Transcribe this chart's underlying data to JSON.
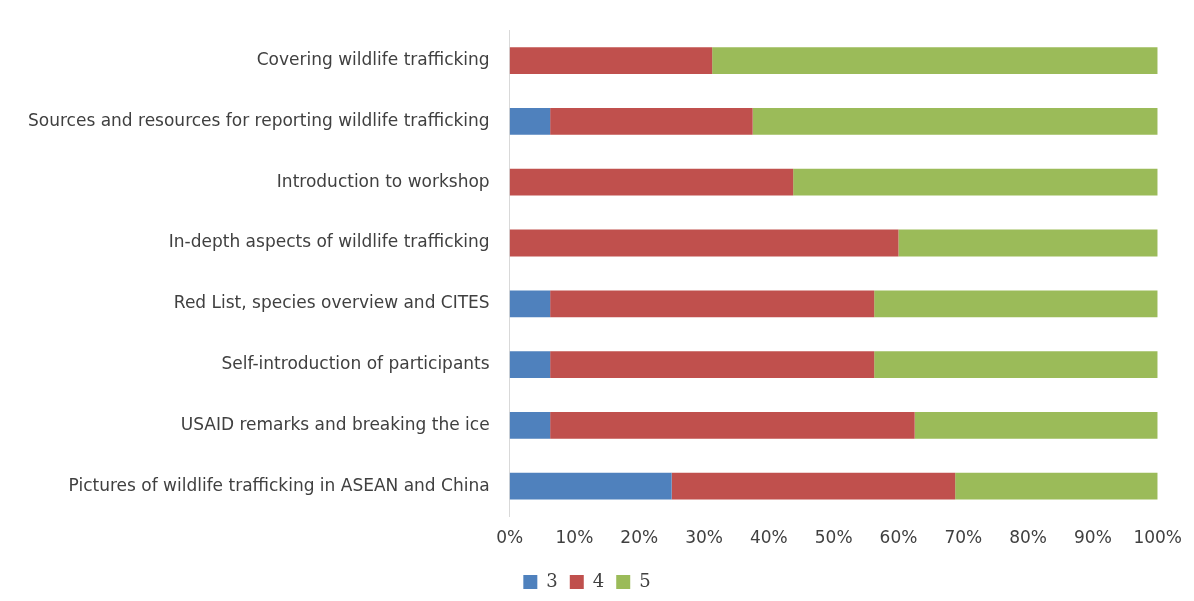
{
  "chart_data": {
    "type": "bar",
    "orientation": "horizontal",
    "stacked": true,
    "categories": [
      "Covering wildlife trafficking",
      "Sources and resources for reporting wildlife trafficking",
      "Introduction to workshop",
      "In-depth aspects of wildlife trafficking",
      "Red List, species overview and CITES",
      "Self-introduction of participants",
      "USAID remarks and breaking the ice",
      "Pictures of wildlife trafficking in ASEAN and China"
    ],
    "series": [
      {
        "name": "3",
        "color": "#4f81bd",
        "values": [
          0,
          6.25,
          0,
          0,
          6.25,
          6.25,
          6.25,
          25
        ]
      },
      {
        "name": "4",
        "color": "#c0504d",
        "values": [
          31.25,
          31.25,
          43.75,
          60,
          50,
          50,
          56.25,
          43.75
        ]
      },
      {
        "name": "5",
        "color": "#9bbb59",
        "values": [
          68.75,
          62.5,
          56.25,
          40,
          43.75,
          43.75,
          37.5,
          31.25
        ]
      }
    ],
    "xlim": [
      0,
      100
    ],
    "xticks": [
      {
        "value": 0,
        "label": "0%"
      },
      {
        "value": 10,
        "label": "10%"
      },
      {
        "value": 20,
        "label": "20%"
      },
      {
        "value": 30,
        "label": "30%"
      },
      {
        "value": 40,
        "label": "40%"
      },
      {
        "value": 50,
        "label": "50%"
      },
      {
        "value": 60,
        "label": "60%"
      },
      {
        "value": 70,
        "label": "70%"
      },
      {
        "value": 80,
        "label": "80%"
      },
      {
        "value": 90,
        "label": "90%"
      },
      {
        "value": 100,
        "label": "100%"
      }
    ],
    "grid": false,
    "legend": "bottom"
  }
}
